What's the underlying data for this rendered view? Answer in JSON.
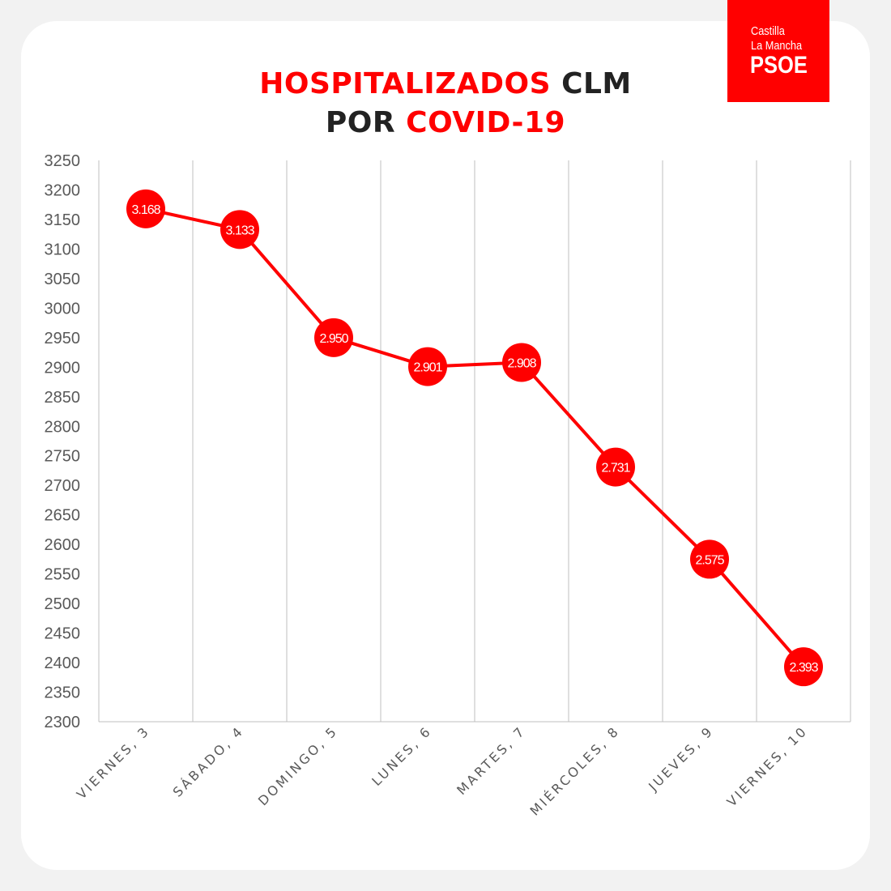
{
  "logo": {
    "line1": "Castilla",
    "line2": "La Mancha",
    "line3": "PSOE"
  },
  "title": {
    "line1_red": "HOSPITALIZADOS",
    "line1_dark": "CLM",
    "line2_dark": "POR",
    "line2_red": "COVID-19"
  },
  "colors": {
    "accent": "#ff0000",
    "grid": "#bfbfbf",
    "text": "#595959"
  },
  "chart_data": {
    "type": "line",
    "title": "HOSPITALIZADOS CLM POR COVID-19",
    "categories": [
      "VIERNES, 3",
      "SÁBADO, 4",
      "DOMINGO, 5",
      "LUNES, 6",
      "MARTES, 7",
      "MIÉRCOLES, 8",
      "JUEVES, 9",
      "VIERNES, 10"
    ],
    "values": [
      3168,
      3133,
      2950,
      2901,
      2908,
      2731,
      2575,
      2393
    ],
    "data_labels": [
      "3.168",
      "3.133",
      "2.950",
      "2.901",
      "2.908",
      "2.731",
      "2.575",
      "2.393"
    ],
    "ylim": [
      2300,
      3250
    ],
    "ytick_step": 50,
    "grid": "vertical",
    "legend": "none"
  }
}
